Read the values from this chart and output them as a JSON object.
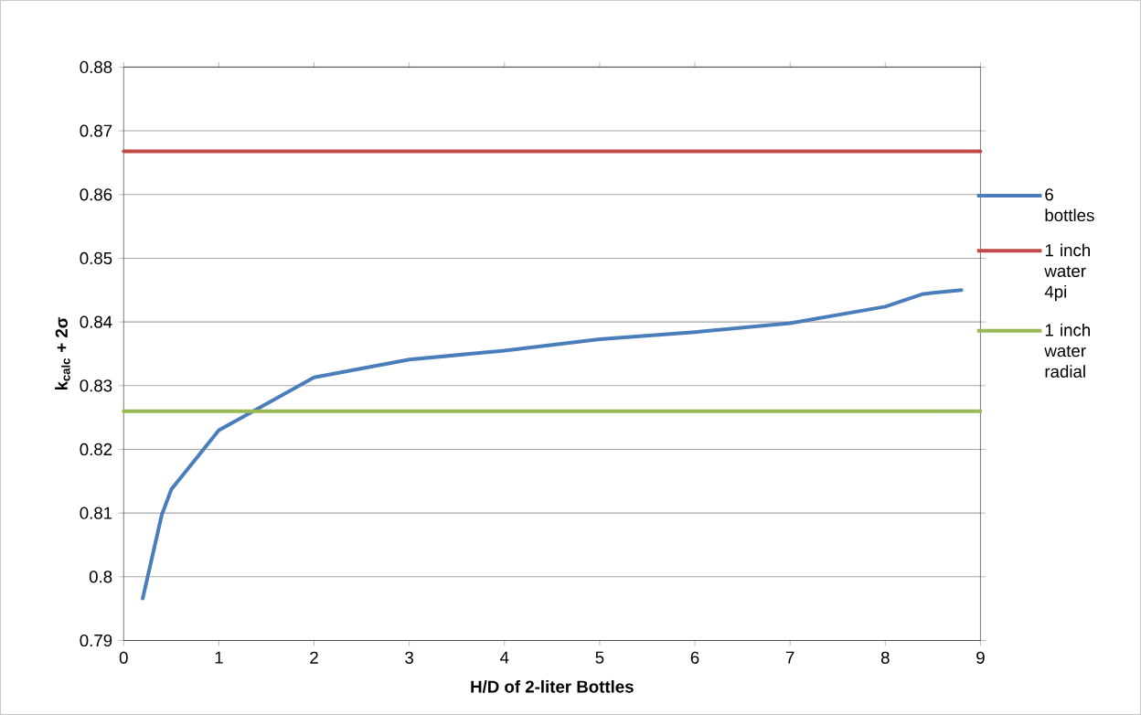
{
  "chart_data": {
    "type": "line",
    "xlabel": "H/D of 2-liter Bottles",
    "ylabel": "k$_{calc}$ + 2σ",
    "xlim": [
      0,
      9
    ],
    "ylim": [
      0.79,
      0.88
    ],
    "xticks": [
      0,
      1,
      2,
      3,
      4,
      5,
      6,
      7,
      8,
      9
    ],
    "yticks": [
      0.79,
      0.8,
      0.81,
      0.82,
      0.83,
      0.84,
      0.85,
      0.86,
      0.87,
      0.88
    ],
    "grid": "y",
    "legend": "right",
    "series": [
      {
        "name": "6 bottles",
        "color": "#4a7ebb",
        "x": [
          0.2,
          0.4,
          0.5,
          1,
          2,
          3,
          4,
          5,
          6,
          7,
          8,
          8.4,
          8.8
        ],
        "values": [
          0.7966,
          0.8097,
          0.8137,
          0.823,
          0.8313,
          0.8341,
          0.8355,
          0.8373,
          0.8384,
          0.8398,
          0.8424,
          0.8444,
          0.845
        ]
      },
      {
        "name": "1 inch water 4pi",
        "color": "#be4b48",
        "x": [
          0,
          9
        ],
        "values": [
          0.8668,
          0.8668
        ]
      },
      {
        "name": "1 inch water radial",
        "color": "#98b954",
        "x": [
          0,
          9
        ],
        "values": [
          0.826,
          0.826
        ]
      }
    ]
  }
}
